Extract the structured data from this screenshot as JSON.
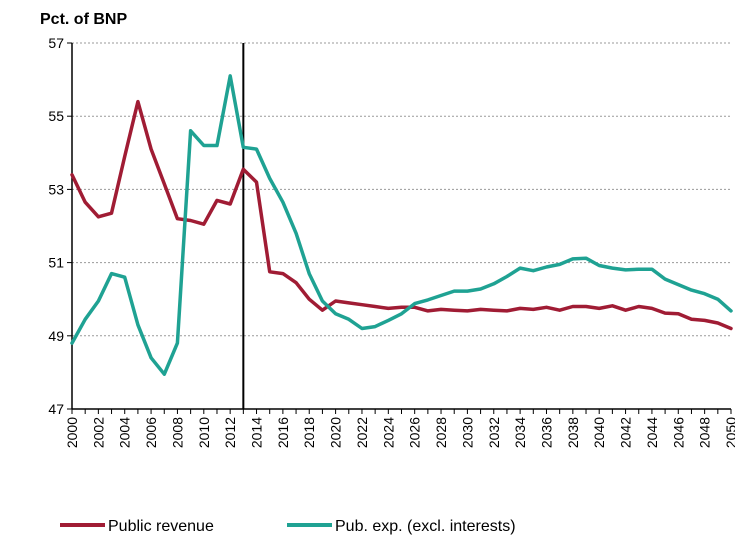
{
  "chart_data": {
    "type": "line",
    "title": "",
    "ylabel": "Pct. of BNP",
    "xlabel": "",
    "ylim": [
      47,
      57
    ],
    "yticks": [
      47,
      49,
      51,
      53,
      55,
      57
    ],
    "xlim": [
      2000,
      2050
    ],
    "xticks": [
      2000,
      2002,
      2004,
      2006,
      2008,
      2010,
      2012,
      2014,
      2016,
      2018,
      2020,
      2022,
      2024,
      2026,
      2028,
      2030,
      2032,
      2034,
      2036,
      2038,
      2040,
      2042,
      2044,
      2046,
      2048,
      2050
    ],
    "vline_year": 2013,
    "grid": "horizontal dashed",
    "legend_position": "bottom",
    "x": [
      2000,
      2001,
      2002,
      2003,
      2004,
      2005,
      2006,
      2007,
      2008,
      2009,
      2010,
      2011,
      2012,
      2013,
      2014,
      2015,
      2016,
      2017,
      2018,
      2019,
      2020,
      2021,
      2022,
      2023,
      2024,
      2025,
      2026,
      2027,
      2028,
      2029,
      2030,
      2031,
      2032,
      2033,
      2034,
      2035,
      2036,
      2037,
      2038,
      2039,
      2040,
      2041,
      2042,
      2043,
      2044,
      2045,
      2046,
      2047,
      2048,
      2049,
      2050
    ],
    "series": [
      {
        "name": "Public revenue",
        "color": "#a01c34",
        "values": [
          53.4,
          52.65,
          52.25,
          52.35,
          53.9,
          55.4,
          54.1,
          53.15,
          52.2,
          52.15,
          52.05,
          52.7,
          52.6,
          53.55,
          53.2,
          50.75,
          50.7,
          50.45,
          50.0,
          49.7,
          49.95,
          49.9,
          49.85,
          49.8,
          49.75,
          49.78,
          49.78,
          49.68,
          49.72,
          49.7,
          49.68,
          49.72,
          49.7,
          49.68,
          49.75,
          49.72,
          49.78,
          49.7,
          49.8,
          49.8,
          49.75,
          49.82,
          49.7,
          49.8,
          49.75,
          49.62,
          49.6,
          49.45,
          49.42,
          49.35,
          49.2
        ]
      },
      {
        "name": "Pub. exp. (excl. interests)",
        "color": "#1fa293",
        "values": [
          48.8,
          49.45,
          49.95,
          50.7,
          50.6,
          49.3,
          48.4,
          47.95,
          48.8,
          54.6,
          54.2,
          54.2,
          56.1,
          54.15,
          54.1,
          53.3,
          52.65,
          51.8,
          50.7,
          49.95,
          49.6,
          49.45,
          49.2,
          49.25,
          49.42,
          49.6,
          49.88,
          49.98,
          50.1,
          50.22,
          50.22,
          50.28,
          50.42,
          50.62,
          50.85,
          50.78,
          50.88,
          50.95,
          51.1,
          51.12,
          50.92,
          50.85,
          50.8,
          50.82,
          50.82,
          50.55,
          50.4,
          50.25,
          50.15,
          50.0,
          49.68
        ]
      }
    ]
  }
}
